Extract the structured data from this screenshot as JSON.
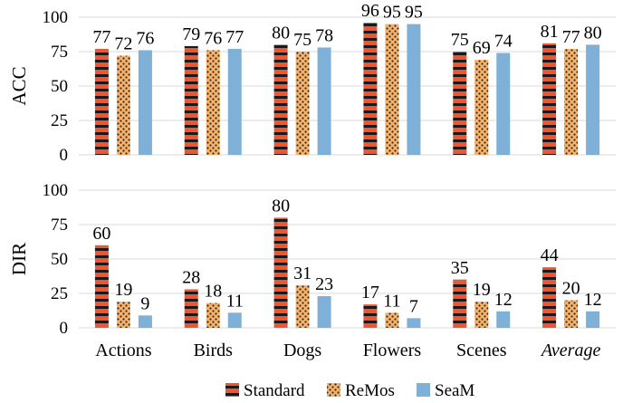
{
  "chart_data": {
    "type": "bar",
    "categories": [
      "Actions",
      "Birds",
      "Dogs",
      "Flowers",
      "Scenes",
      "Average"
    ],
    "italic_categories": [
      "Average"
    ],
    "series_styles": [
      {
        "name": "Standard",
        "color": "#ee5533",
        "pattern": "horizontal-stripes"
      },
      {
        "name": "ReMos",
        "color": "#f7b36a",
        "pattern": "dots"
      },
      {
        "name": "SeaM",
        "color": "#7fb0d8",
        "pattern": "solid"
      }
    ],
    "legend_position": "bottom",
    "grid": true,
    "panels": [
      {
        "ylabel": "ACC",
        "ylim": [
          0,
          100
        ],
        "yticks": [
          0,
          25,
          50,
          75,
          100
        ],
        "series": [
          {
            "name": "Standard",
            "values": [
              77,
              79,
              80,
              96,
              75,
              81
            ]
          },
          {
            "name": "ReMos",
            "values": [
              72,
              76,
              75,
              95,
              69,
              77
            ]
          },
          {
            "name": "SeaM",
            "values": [
              76,
              77,
              78,
              95,
              74,
              80
            ]
          }
        ]
      },
      {
        "ylabel": "DIR",
        "ylim": [
          0,
          100
        ],
        "yticks": [
          0,
          25,
          50,
          75,
          100
        ],
        "series": [
          {
            "name": "Standard",
            "values": [
              60,
              28,
              80,
              17,
              35,
              44
            ]
          },
          {
            "name": "ReMos",
            "values": [
              19,
              18,
              31,
              11,
              19,
              20
            ]
          },
          {
            "name": "SeaM",
            "values": [
              9,
              11,
              23,
              7,
              12,
              12
            ]
          }
        ]
      }
    ]
  }
}
